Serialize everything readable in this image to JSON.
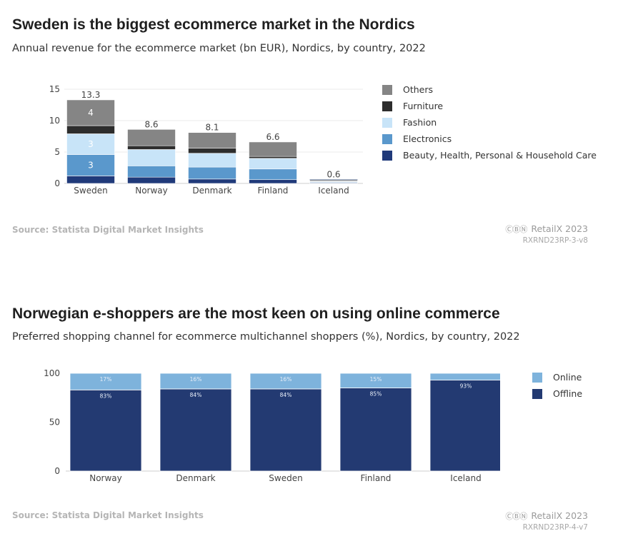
{
  "charts": [
    {
      "title": "Sweden is the biggest ecommerce market in the Nordics",
      "subtitle": "Annual revenue for the ecommerce market (bn EUR), Nordics, by country, 2022",
      "source": "Source: Statista Digital Market Insights",
      "brand": "RetailX 2023",
      "brand_icon": "creative-commons-icon",
      "code": "RXRND23RP-3-v8"
    },
    {
      "title": "Norwegian e-shoppers are the most keen on using online commerce",
      "subtitle": "Preferred shopping channel for ecommerce multichannel shoppers (%), Nordics, by country, 2022",
      "source": "Source: Statista Digital Market Insights",
      "brand": "RetailX 2023",
      "brand_icon": "creative-commons-icon",
      "code": "RXRND23RP-4-v7"
    }
  ],
  "chart_data": [
    {
      "type": "bar",
      "stacked": true,
      "categories": [
        "Sweden",
        "Norway",
        "Denmark",
        "Finland",
        "Iceland"
      ],
      "ylim": [
        0,
        15
      ],
      "yticks": [
        0,
        5,
        10,
        15
      ],
      "grid": true,
      "legend_position": "right",
      "totals": [
        13.3,
        8.6,
        8.1,
        6.6,
        0.6
      ],
      "series": [
        {
          "name": "Beauty, Health, Personal & Household Care",
          "color": "#203a7a",
          "values": [
            1.2,
            1.0,
            0.7,
            0.6,
            0.1
          ],
          "labels": [
            null,
            null,
            null,
            null,
            null
          ]
        },
        {
          "name": "Electronics",
          "color": "#5a98cc",
          "values": [
            3.4,
            1.8,
            1.9,
            1.7,
            0.1
          ],
          "labels": [
            "3",
            null,
            null,
            null,
            null
          ]
        },
        {
          "name": "Fashion",
          "color": "#c8e4f8",
          "values": [
            3.3,
            2.6,
            2.2,
            1.7,
            0.1
          ],
          "labels": [
            "3",
            null,
            null,
            null,
            null
          ]
        },
        {
          "name": "Furniture",
          "color": "#2d2d2d",
          "values": [
            1.3,
            0.6,
            0.8,
            0.3,
            0.1
          ],
          "labels": [
            null,
            null,
            null,
            null,
            null
          ]
        },
        {
          "name": "Others",
          "color": "#858585",
          "values": [
            4.1,
            2.6,
            2.5,
            2.3,
            0.2
          ],
          "labels": [
            "4",
            null,
            null,
            null,
            null
          ]
        }
      ]
    },
    {
      "type": "bar",
      "stacked": true,
      "categories": [
        "Norway",
        "Denmark",
        "Sweden",
        "Finland",
        "Iceland"
      ],
      "ylim": [
        0,
        100
      ],
      "yticks": [
        0,
        50,
        100
      ],
      "grid": false,
      "legend_position": "top-right",
      "series": [
        {
          "name": "Offline",
          "color": "#233a72",
          "values": [
            83,
            84,
            84,
            85,
            93
          ],
          "labels": [
            "83%",
            "84%",
            "84%",
            "85%",
            "93%"
          ]
        },
        {
          "name": "Online",
          "color": "#7eb3dc",
          "values": [
            17,
            16,
            16,
            15,
            7
          ],
          "labels": [
            "17%",
            "16%",
            "16%",
            "15%",
            null
          ]
        }
      ]
    }
  ]
}
